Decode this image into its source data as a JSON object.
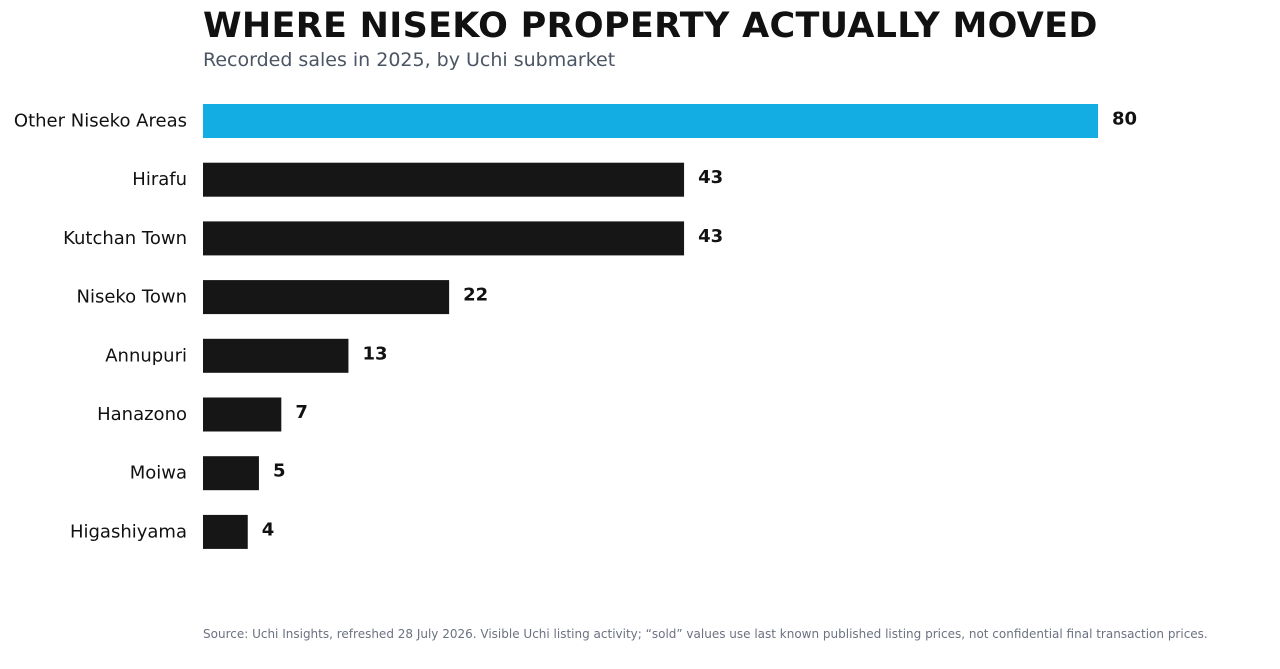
{
  "header": {
    "title": "WHERE NISEKO PROPERTY ACTUALLY MOVED",
    "subtitle": "Recorded sales in 2025, by Uchi submarket"
  },
  "footer": {
    "source": "Source: Uchi Insights, refreshed 28 July 2026. Visible Uchi listing activity; “sold” values use last known published listing prices, not confidential final transaction prices."
  },
  "chart_data": {
    "type": "bar",
    "orientation": "horizontal",
    "title": "WHERE NISEKO PROPERTY ACTUALLY MOVED",
    "subtitle": "Recorded sales in 2025, by Uchi submarket",
    "categories": [
      "Other Niseko Areas",
      "Hirafu",
      "Kutchan Town",
      "Niseko Town",
      "Annupuri",
      "Hanazono",
      "Moiwa",
      "Higashiyama"
    ],
    "values": [
      80,
      43,
      43,
      22,
      13,
      7,
      5,
      4
    ],
    "data_labels": [
      "80",
      "43",
      "43",
      "22",
      "13",
      "7",
      "5",
      "4"
    ],
    "highlight_category": "Other Niseko Areas",
    "xlim": [
      0,
      80
    ],
    "xlabel": "",
    "ylabel": "",
    "grid": false,
    "legend": "none",
    "colors": {
      "highlight": "#14ade3",
      "bar": "#161616",
      "label": "#111111"
    }
  }
}
